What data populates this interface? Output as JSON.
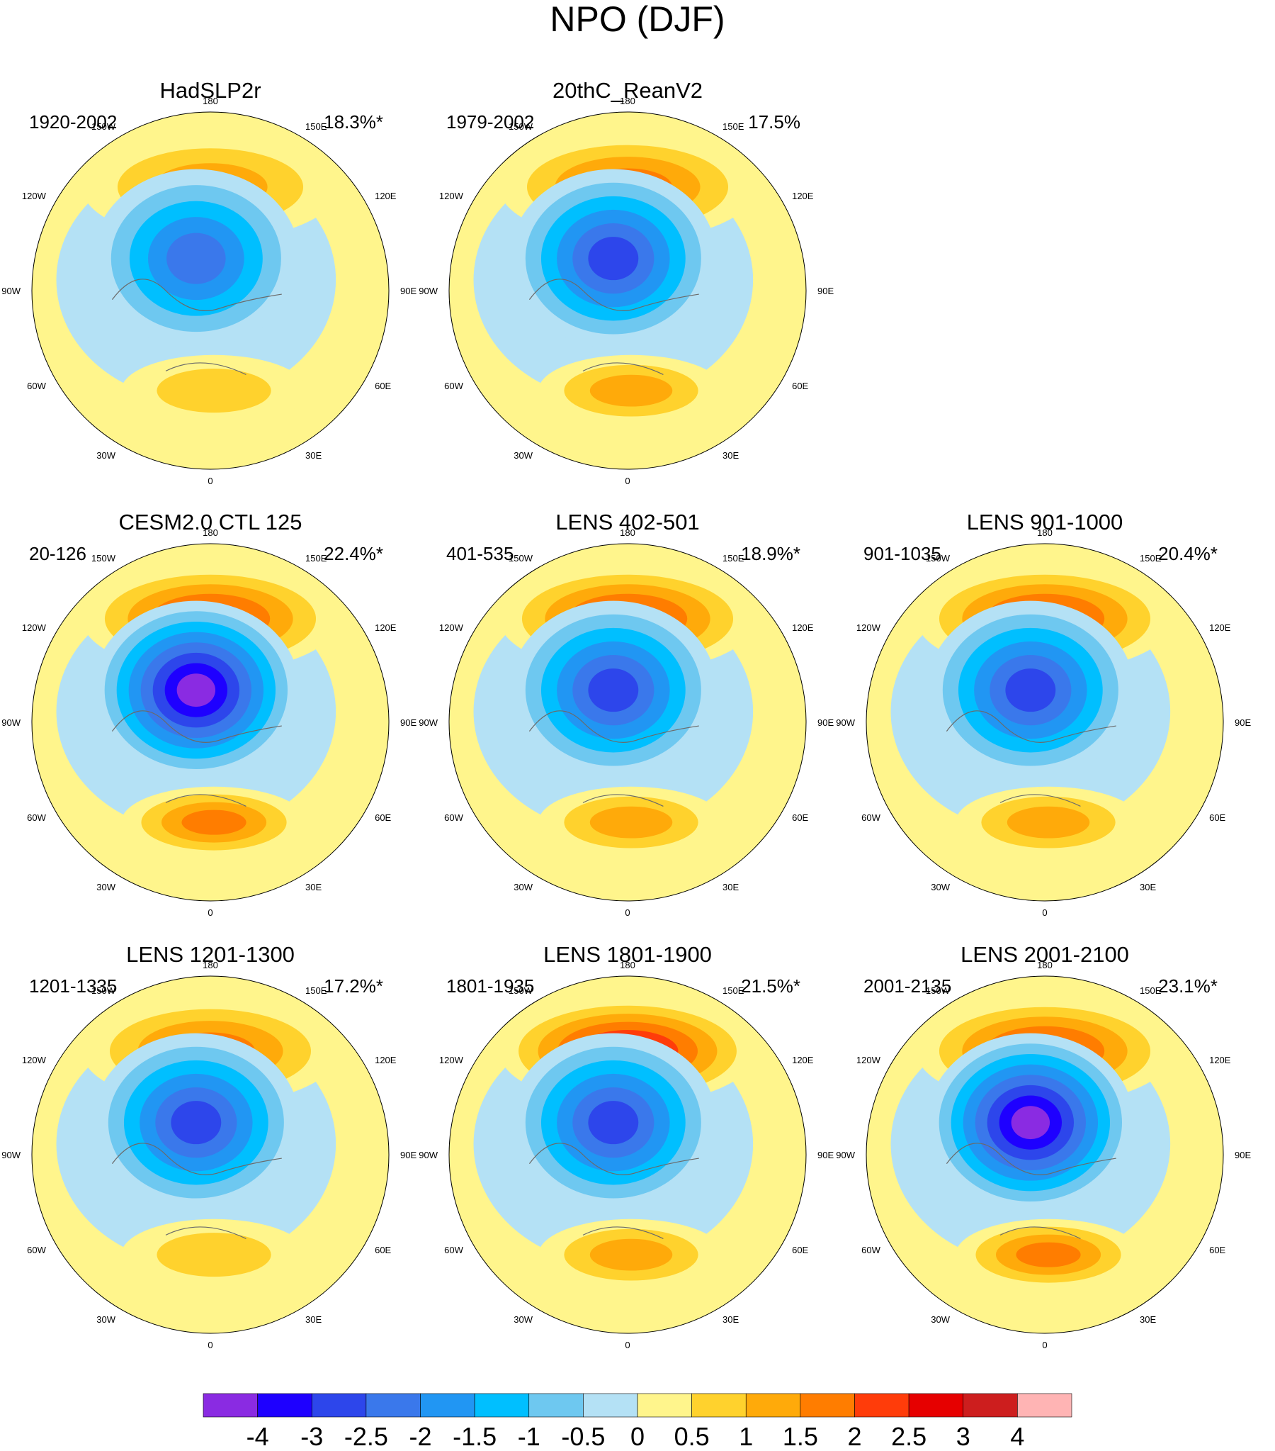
{
  "title": "NPO (DJF)",
  "chart_data": {
    "type": "contour-map",
    "projection": "north-polar-stereographic",
    "variable": "NPO sea level pressure regression pattern (DJF)",
    "panels": [
      {
        "title": "HadSLP2r",
        "period": "1920-2002",
        "variance": "18.3%*",
        "features": {
          "pacific_high_peak": 1.5,
          "arctic_low_min": -2.5,
          "europe_high_peak": 1.0
        }
      },
      {
        "title": "20thC_ReanV2",
        "period": "1979-2002",
        "variance": "17.5%",
        "features": {
          "pacific_high_peak": 2.0,
          "arctic_low_min": -3.0,
          "europe_high_peak": 1.5
        }
      },
      {
        "title": "CESM2.0 CTL 125",
        "period": "20-126",
        "variance": "22.4%*",
        "features": {
          "pacific_high_peak": 2.5,
          "arctic_low_min": -3.5,
          "europe_high_peak": 2.0
        }
      },
      {
        "title": "LENS 402-501",
        "period": "401-535",
        "variance": "18.9%*",
        "features": {
          "pacific_high_peak": 2.5,
          "arctic_low_min": -3.0,
          "europe_high_peak": 1.5
        }
      },
      {
        "title": "LENS 901-1000",
        "period": "901-1035",
        "variance": "20.4%*",
        "features": {
          "pacific_high_peak": 2.5,
          "arctic_low_min": -3.0,
          "europe_high_peak": 1.5
        }
      },
      {
        "title": "LENS 1201-1300",
        "period": "1201-1335",
        "variance": "17.2%*",
        "features": {
          "pacific_high_peak": 2.0,
          "arctic_low_min": -3.0,
          "europe_high_peak": 1.0
        }
      },
      {
        "title": "LENS 1801-1900",
        "period": "1801-1935",
        "variance": "21.5%*",
        "features": {
          "pacific_high_peak": 3.0,
          "arctic_low_min": -3.0,
          "europe_high_peak": 1.5
        }
      },
      {
        "title": "LENS 2001-2100",
        "period": "2001-2135",
        "variance": "23.1%*",
        "features": {
          "pacific_high_peak": 2.5,
          "arctic_low_min": -3.5,
          "europe_high_peak": 2.0
        }
      }
    ],
    "lon_labels": [
      "180",
      "150E",
      "120E",
      "90E",
      "60E",
      "30E",
      "0",
      "30W",
      "60W",
      "90W",
      "120W",
      "150W"
    ],
    "colorbar": {
      "levels": [
        -4,
        -3,
        -2.5,
        -2,
        -1.5,
        -1,
        -0.5,
        0,
        0.5,
        1,
        1.5,
        2,
        2.5,
        3,
        4
      ],
      "level_labels": [
        "-4",
        "-3",
        "-2.5",
        "-2",
        "-1.5",
        "-1",
        "-0.5",
        "0",
        "0.5",
        "1",
        "1.5",
        "2",
        "2.5",
        "3",
        "4"
      ],
      "colors": [
        "#8A2BE2",
        "#1E00FF",
        "#2D46EB",
        "#3A78EB",
        "#2196F3",
        "#00BFFF",
        "#6EC8F0",
        "#B4E1F5",
        "#FFF58C",
        "#FFD22D",
        "#FFAA0A",
        "#FF7D00",
        "#FF3C0A",
        "#E60000",
        "#CD1E1E",
        "#FFB4B4"
      ]
    }
  }
}
